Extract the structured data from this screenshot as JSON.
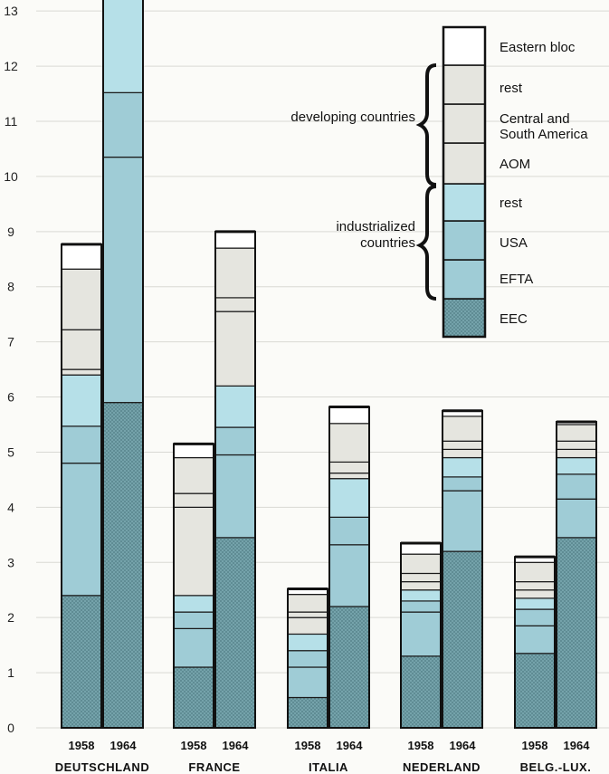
{
  "chart_data": {
    "type": "bar",
    "stacked": true,
    "ylim": [
      0,
      13.3
    ],
    "y_ticks": [
      "0",
      "1",
      "2",
      "3",
      "4",
      "5",
      "6",
      "7",
      "8",
      "9",
      "10",
      "11",
      "12",
      "13"
    ],
    "grid": true,
    "legend_placement": "top-right",
    "countries": [
      {
        "name": "DEUTSCHLAND",
        "bars": [
          {
            "year": "1958",
            "values": [
              2.4,
              2.4,
              0.67,
              0.93,
              0.1,
              0.72,
              1.1,
              0.45
            ]
          },
          {
            "year": "1964",
            "values": [
              5.9,
              4.45,
              1.17,
              1.83,
              0,
              0,
              0,
              0
            ]
          }
        ]
      },
      {
        "name": "FRANCE",
        "bars": [
          {
            "year": "1958",
            "values": [
              1.1,
              0.7,
              0.3,
              0.3,
              1.6,
              0.25,
              0.65,
              0.25
            ]
          },
          {
            "year": "1964",
            "values": [
              3.45,
              1.5,
              0.5,
              0.75,
              1.35,
              0.25,
              0.9,
              0.3
            ]
          }
        ]
      },
      {
        "name": "ITALIA",
        "bars": [
          {
            "year": "1958",
            "values": [
              0.55,
              0.55,
              0.3,
              0.3,
              0.3,
              0.1,
              0.32,
              0.1
            ]
          },
          {
            "year": "1964",
            "values": [
              2.2,
              1.12,
              0.5,
              0.7,
              0.1,
              0.2,
              0.7,
              0.3
            ]
          }
        ]
      },
      {
        "name": "NEDERLAND",
        "bars": [
          {
            "year": "1958",
            "values": [
              1.3,
              0.8,
              0.2,
              0.2,
              0.15,
              0.15,
              0.35,
              0.2
            ]
          },
          {
            "year": "1964",
            "values": [
              3.2,
              1.1,
              0.25,
              0.35,
              0.15,
              0.15,
              0.45,
              0.1
            ]
          }
        ]
      },
      {
        "name": "BELG.-LUX.",
        "bars": [
          {
            "year": "1958",
            "values": [
              1.35,
              0.5,
              0.3,
              0.2,
              0.15,
              0.15,
              0.35,
              0.1
            ]
          },
          {
            "year": "1964",
            "values": [
              3.45,
              0.7,
              0.45,
              0.3,
              0.15,
              0.15,
              0.3,
              0.05
            ]
          }
        ]
      }
    ],
    "series": [
      {
        "name": "EEC",
        "color": "#76a6ae",
        "pattern": "crosshatch"
      },
      {
        "name": "EFTA",
        "color": "#9fccd6"
      },
      {
        "name": "USA",
        "color": "#9fccd6"
      },
      {
        "name": "rest",
        "color": "#b6e0e8"
      },
      {
        "name": "AOM",
        "color": "#e5e5df"
      },
      {
        "name": "Central and South America",
        "color": "#e5e5df"
      },
      {
        "name": "rest",
        "color": "#e5e5df"
      },
      {
        "name": "Eastern bloc",
        "color": "#ffffff"
      }
    ],
    "legend": {
      "items": [
        "Eastern bloc",
        "rest",
        "Central and",
        "South America",
        "AOM",
        "rest",
        "USA",
        "EFTA",
        "EEC"
      ],
      "group_developing": "developing countries",
      "group_industrialized_1": "industrialized",
      "group_industrialized_2": "countries"
    }
  }
}
